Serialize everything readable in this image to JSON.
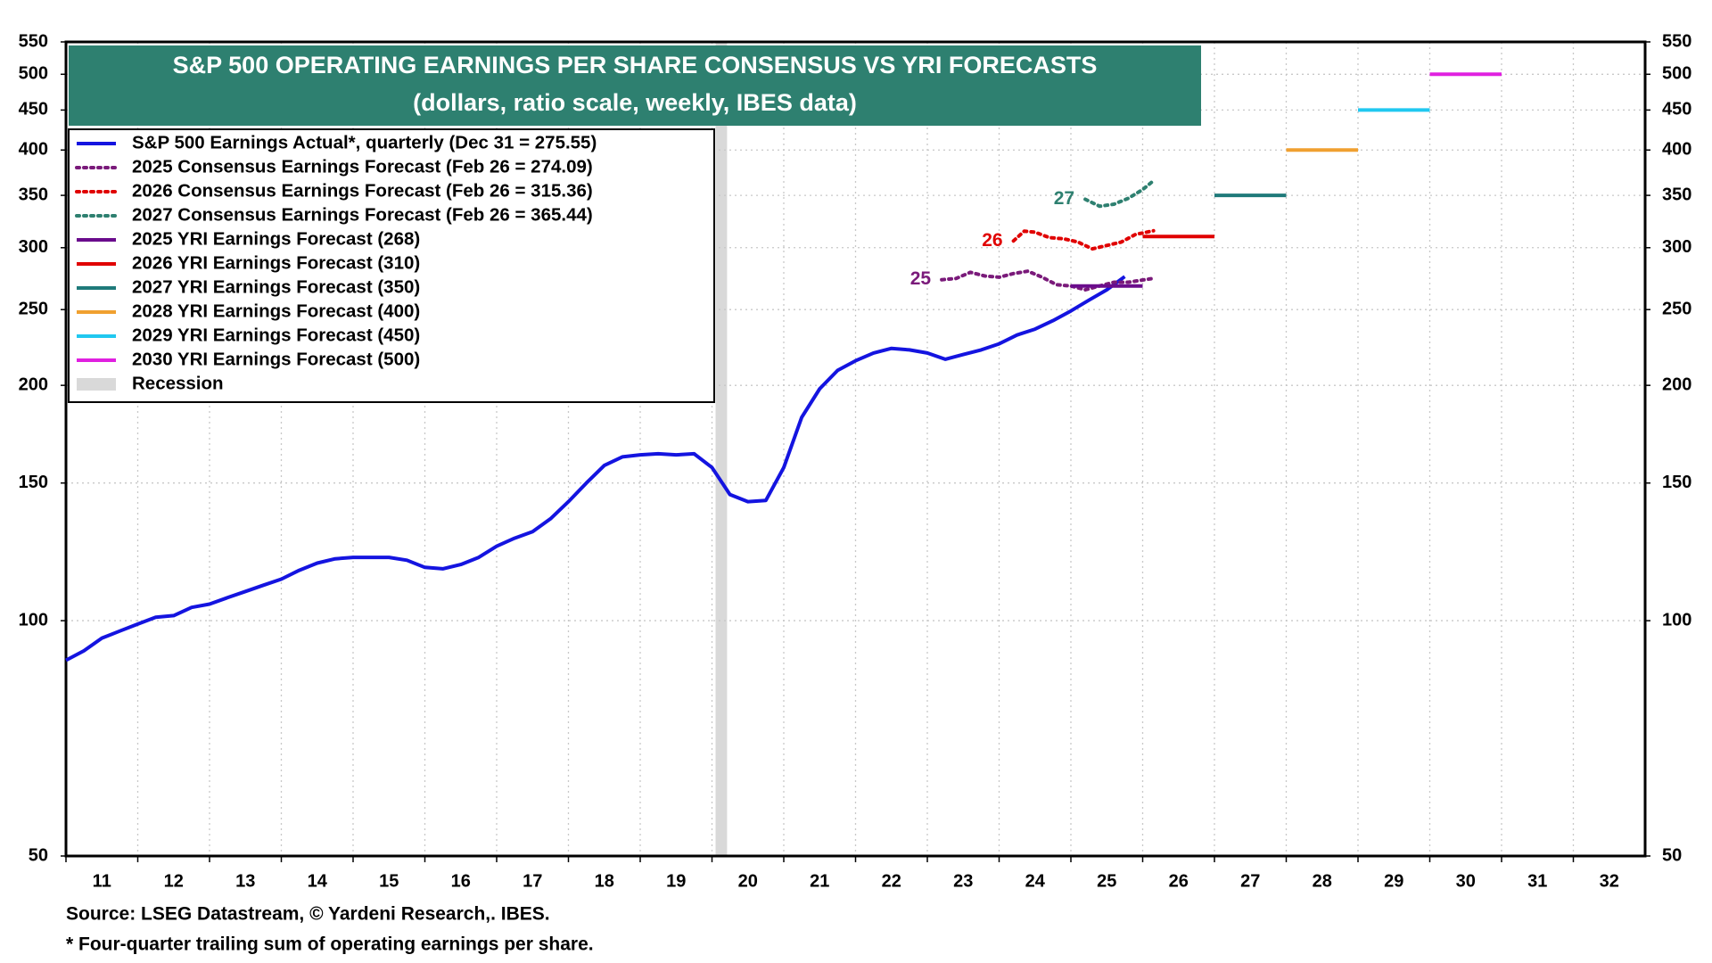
{
  "chart_data": {
    "type": "line",
    "title": "S&P 500 OPERATING EARNINGS PER SHARE CONSENSUS VS YRI FORECASTS",
    "subtitle": "(dollars, ratio scale, weekly, IBES data)",
    "log_scale": true,
    "grid": true,
    "xlim": [
      2011,
      2033
    ],
    "ylim": [
      50,
      550
    ],
    "yticks": [
      50,
      100,
      150,
      200,
      250,
      300,
      350,
      400,
      450,
      500,
      550
    ],
    "xticks": [
      {
        "value": 2011,
        "label": "11"
      },
      {
        "value": 2012,
        "label": "12"
      },
      {
        "value": 2013,
        "label": "13"
      },
      {
        "value": 2014,
        "label": "14"
      },
      {
        "value": 2015,
        "label": "15"
      },
      {
        "value": 2016,
        "label": "16"
      },
      {
        "value": 2017,
        "label": "17"
      },
      {
        "value": 2018,
        "label": "18"
      },
      {
        "value": 2019,
        "label": "19"
      },
      {
        "value": 2020,
        "label": "20"
      },
      {
        "value": 2021,
        "label": "21"
      },
      {
        "value": 2022,
        "label": "22"
      },
      {
        "value": 2023,
        "label": "23"
      },
      {
        "value": 2024,
        "label": "24"
      },
      {
        "value": 2025,
        "label": "25"
      },
      {
        "value": 2026,
        "label": "26"
      },
      {
        "value": 2027,
        "label": "27"
      },
      {
        "value": 2028,
        "label": "28"
      },
      {
        "value": 2029,
        "label": "29"
      },
      {
        "value": 2030,
        "label": "30"
      },
      {
        "value": 2031,
        "label": "31"
      },
      {
        "value": 2032,
        "label": "32"
      }
    ],
    "series": [
      {
        "name": "S&P 500 Earnings Actual*, quarterly (Dec 31 = 275.55)",
        "color": "#1414e0",
        "style": "solid",
        "x": [
          2011,
          2011.25,
          2011.5,
          2011.75,
          2012,
          2012.25,
          2012.5,
          2012.75,
          2013,
          2013.25,
          2013.5,
          2013.75,
          2014,
          2014.25,
          2014.5,
          2014.75,
          2015,
          2015.25,
          2015.5,
          2015.75,
          2016,
          2016.25,
          2016.5,
          2016.75,
          2017,
          2017.25,
          2017.5,
          2017.75,
          2018,
          2018.25,
          2018.5,
          2018.75,
          2019,
          2019.25,
          2019.5,
          2019.75,
          2020,
          2020.25,
          2020.5,
          2020.75,
          2021,
          2021.25,
          2021.5,
          2021.75,
          2022,
          2022.25,
          2022.5,
          2022.75,
          2023,
          2023.25,
          2023.5,
          2023.75,
          2024,
          2024.25,
          2024.5,
          2024.75,
          2025,
          2025.25,
          2025.5,
          2025.75
        ],
        "values": [
          89,
          91.5,
          95,
          97,
          99,
          101,
          101.5,
          104,
          105,
          107,
          109,
          111,
          113,
          116,
          118.5,
          120,
          120.5,
          120.5,
          120.5,
          119.5,
          117,
          116.5,
          118,
          120.5,
          124.5,
          127.5,
          130,
          135,
          142,
          150,
          158,
          162,
          163,
          163.5,
          163,
          163.5,
          157,
          145,
          142,
          142.5,
          157,
          182,
          198,
          209,
          215,
          220,
          223,
          222,
          220,
          216,
          219,
          222,
          226,
          232,
          236,
          242,
          249,
          257,
          265,
          275.55
        ]
      },
      {
        "name": "2025 Consensus Earnings Forecast (Feb 26 = 274.09)",
        "color": "#7a1a7a",
        "style": "dotted",
        "label": "25",
        "x": [
          2023.2,
          2023.4,
          2023.6,
          2023.8,
          2024.0,
          2024.2,
          2024.4,
          2024.6,
          2024.8,
          2025.0,
          2025.2,
          2025.4,
          2025.6,
          2025.8,
          2026.15
        ],
        "values": [
          273,
          274,
          279,
          276,
          275,
          278,
          280,
          275,
          269,
          268,
          265,
          268,
          271,
          271,
          274.09
        ]
      },
      {
        "name": "2026 Consensus Earnings Forecast (Feb 26 = 315.36)",
        "color": "#e00000",
        "style": "dotted",
        "label": "26",
        "x": [
          2024.2,
          2024.35,
          2024.5,
          2024.7,
          2024.9,
          2025.1,
          2025.3,
          2025.5,
          2025.7,
          2025.9,
          2026.15
        ],
        "values": [
          306,
          315,
          314,
          309,
          308,
          305,
          299,
          302,
          305,
          312,
          315.36
        ]
      },
      {
        "name": "2027 Consensus Earnings Forecast (Feb 26 = 365.44)",
        "color": "#2e8070",
        "style": "dotted",
        "label": "27",
        "x": [
          2025.2,
          2025.4,
          2025.6,
          2025.8,
          2026.0,
          2026.15
        ],
        "values": [
          346,
          339,
          341,
          347,
          356,
          365.44
        ]
      },
      {
        "name": "2025 YRI Earnings Forecast (268)",
        "color": "#6a0c8c",
        "style": "solid",
        "x": [
          2025,
          2026
        ],
        "values": [
          268,
          268
        ]
      },
      {
        "name": "2026 YRI Earnings Forecast (310)",
        "color": "#e00000",
        "style": "solid",
        "x": [
          2026,
          2027
        ],
        "values": [
          310,
          310
        ]
      },
      {
        "name": "2027 YRI Earnings Forecast (350)",
        "color": "#1f7a7a",
        "style": "solid",
        "x": [
          2027,
          2028
        ],
        "values": [
          350,
          350
        ]
      },
      {
        "name": "2028 YRI Earnings Forecast (400)",
        "color": "#f0a030",
        "style": "solid",
        "x": [
          2028,
          2029
        ],
        "values": [
          400,
          400
        ]
      },
      {
        "name": "2029 YRI Earnings Forecast (450)",
        "color": "#20c8f0",
        "style": "solid",
        "x": [
          2029,
          2030
        ],
        "values": [
          450,
          450
        ]
      },
      {
        "name": "2030 YRI Earnings Forecast (500)",
        "color": "#e020e0",
        "style": "solid",
        "x": [
          2030,
          2031
        ],
        "values": [
          500,
          500
        ]
      }
    ],
    "recession": {
      "name": "Recession",
      "color": "#d9d9d9",
      "x": [
        2020.05,
        2020.21
      ]
    },
    "title_color": "#2e8070",
    "notes": [
      "Source: LSEG Datastream, © Yardeni Research,. IBES.",
      "* Four-quarter trailing sum of operating earnings per share."
    ]
  }
}
